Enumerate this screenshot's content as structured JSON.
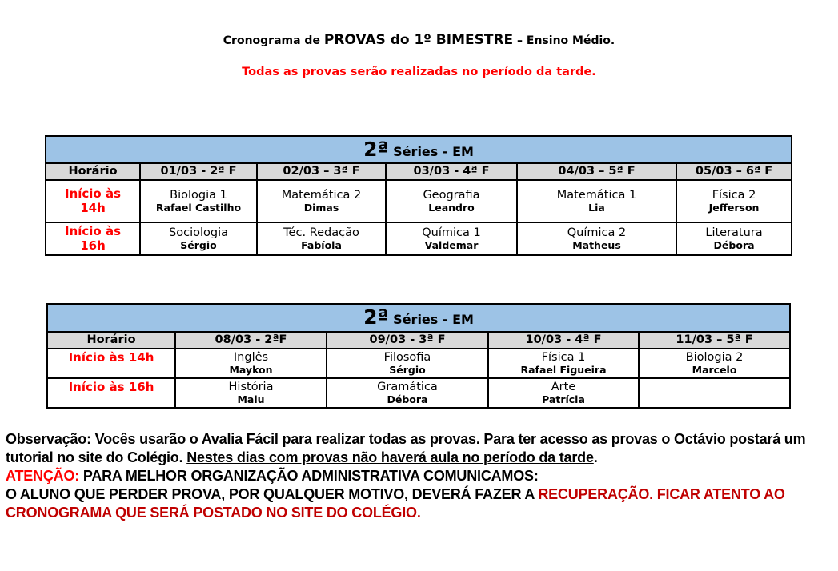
{
  "header": {
    "title_pre": "Cronograma de ",
    "title_main": "PROVAS do 1º BIMESTRE",
    "title_post": " – Ensino Médio.",
    "subtitle": "Todas as provas serão realizadas no período da tarde."
  },
  "table1": {
    "title_num": "2ª",
    "title_text": " Séries - EM",
    "headers": [
      "Horário",
      "01/03 - 2ª F",
      "02/03 – 3ª F",
      "03/03 - 4ª F",
      "04/03 – 5ª F",
      "05/03 – 6ª F"
    ],
    "rows": [
      {
        "time": "Início às 14h",
        "cells": [
          {
            "subject": "Biologia 1",
            "teacher": "Rafael Castilho"
          },
          {
            "subject": "Matemática 2",
            "teacher": "Dimas"
          },
          {
            "subject": "Geografia",
            "teacher": "Leandro"
          },
          {
            "subject": "Matemática 1",
            "teacher": "Lia"
          },
          {
            "subject": "Física 2",
            "teacher": "Jefferson"
          }
        ]
      },
      {
        "time": "Início às 16h",
        "cells": [
          {
            "subject": "Sociologia",
            "teacher": "Sérgio"
          },
          {
            "subject": "Téc. Redação",
            "teacher": "Fabíola"
          },
          {
            "subject": "Química 1",
            "teacher": "Valdemar"
          },
          {
            "subject": "Química 2",
            "teacher": "Matheus"
          },
          {
            "subject": "Literatura",
            "teacher": "Débora"
          }
        ]
      }
    ]
  },
  "table2": {
    "title_num": "2ª",
    "title_text": " Séries  - EM",
    "headers": [
      "Horário",
      "08/03 - 2ªF",
      "09/03 - 3ª F",
      "10/03 - 4ª F",
      "11/03 – 5ª F"
    ],
    "rows": [
      {
        "time": "Início às 14h",
        "cells": [
          {
            "subject": "Inglês",
            "teacher": "Maykon"
          },
          {
            "subject": "Filosofia",
            "teacher": "Sérgio"
          },
          {
            "subject": "Física 1",
            "teacher": "Rafael Figueira"
          },
          {
            "subject": "Biologia 2",
            "teacher": "Marcelo"
          }
        ]
      },
      {
        "time": "Início às 16h",
        "cells": [
          {
            "subject": "História",
            "teacher": "Malu"
          },
          {
            "subject": "Gramática",
            "teacher": "Débora"
          },
          {
            "subject": "Arte",
            "teacher": "Patrícia"
          },
          {
            "subject": "",
            "teacher": ""
          }
        ]
      }
    ]
  },
  "notes": {
    "obs_label": "Observação",
    "obs_text": ": Vocês usarão o Avalia Fácil para realizar todas as provas. Para ter acesso as provas o Octávio postará um tutorial no site do Colégio. ",
    "obs_underlined": "Nestes dias com provas não haverá aula no período da tarde",
    "obs_end": ".",
    "attention_label": "ATENÇÃO:",
    "attention_text": " PARA MELHOR ORGANIZAÇÃO ADMINISTRATIVA  COMUNICAMOS:",
    "line2": "O ALUNO QUE PERDER PROVA, POR QUALQUER MOTIVO, DEVERÁ FAZER A ",
    "line2_red": "RECUPERAÇÃO. FICAR ATENTO AO CRONOGRAMA QUE SERÁ POSTADO NO SITE DO COLÉGIO."
  },
  "colors": {
    "red": "#ff0000",
    "dark_red": "#c00000",
    "table_title_bg": "#9dc3e6",
    "header_bg": "#d9d9d9"
  }
}
